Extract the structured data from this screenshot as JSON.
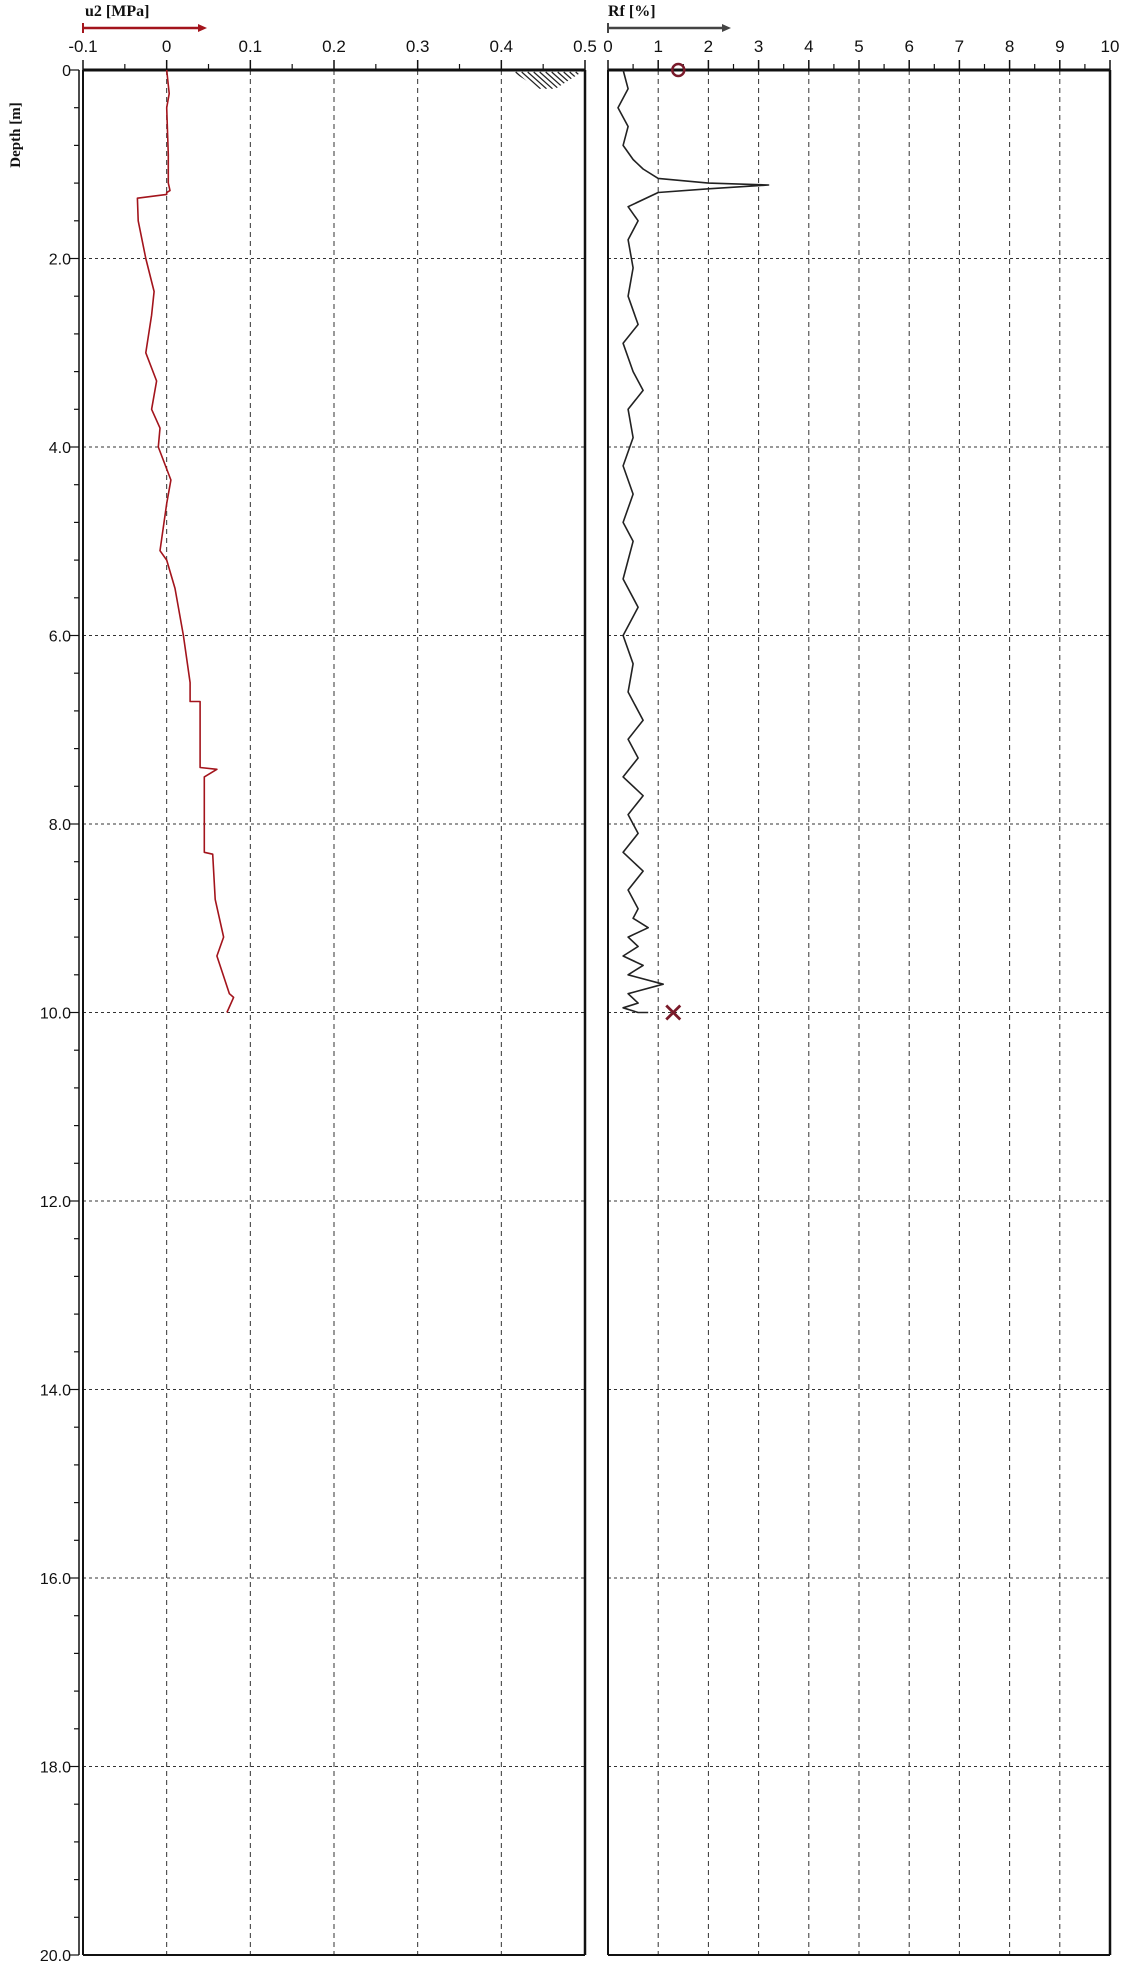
{
  "chart_data": {
    "ylabel": "Depth [m]",
    "depth_range": [
      0,
      20
    ],
    "depth_tick_labels": [
      "0",
      "2.0",
      "4.0",
      "6.0",
      "8.0",
      "10.0",
      "12.0",
      "14.0",
      "16.0",
      "18.0",
      "20.0"
    ],
    "depth_tick_values": [
      0,
      2,
      4,
      6,
      8,
      10,
      12,
      14,
      16,
      18,
      20
    ],
    "panels": [
      {
        "type": "line",
        "xlabel": "u2 [MPa]",
        "xlim": [
          -0.1,
          0.5
        ],
        "x_tick_labels": [
          "-0.1",
          "0",
          "0.1",
          "0.2",
          "0.3",
          "0.4",
          "0.5"
        ],
        "x_tick_values": [
          -0.1,
          0,
          0.1,
          0.2,
          0.3,
          0.4,
          0.5
        ],
        "grid": true,
        "line_color": "#a3141c",
        "marker_color": "#7a1a2a",
        "groundwater_hatch": {
          "x_from": 0.41,
          "x_to": 0.5,
          "depth_from": 0.0,
          "depth_to": 0.2
        },
        "series": {
          "x": [
            0.0,
            0.003,
            0.0,
            0.002,
            0.002,
            0.004,
            0.0,
            0.0,
            -0.035,
            -0.034,
            -0.025,
            -0.015,
            -0.018,
            -0.025,
            -0.012,
            -0.018,
            -0.008,
            -0.01,
            0.005,
            0.0,
            -0.008,
            0.0,
            0.0,
            0.01,
            0.02,
            0.028,
            0.028,
            0.04,
            0.04,
            0.06,
            0.045,
            0.045,
            0.055,
            0.058,
            0.068,
            0.06,
            0.075,
            0.08,
            0.072
          ],
          "depth": [
            0.0,
            0.25,
            0.4,
            0.9,
            1.2,
            1.28,
            1.3,
            1.32,
            1.36,
            1.6,
            2.0,
            2.35,
            2.6,
            3.0,
            3.3,
            3.6,
            3.8,
            4.0,
            4.35,
            4.6,
            5.1,
            5.2,
            5.2,
            5.5,
            6.0,
            6.5,
            6.7,
            6.7,
            7.4,
            7.42,
            7.5,
            8.3,
            8.32,
            8.8,
            9.2,
            9.4,
            9.8,
            9.84,
            10.0
          ]
        }
      },
      {
        "type": "line",
        "xlabel": "Rf [%]",
        "xlim": [
          0,
          10
        ],
        "x_tick_labels": [
          "0",
          "1",
          "2",
          "3",
          "4",
          "5",
          "6",
          "7",
          "8",
          "9",
          "10"
        ],
        "x_tick_values": [
          0,
          1,
          2,
          3,
          4,
          5,
          6,
          7,
          8,
          9,
          10
        ],
        "grid": true,
        "line_color": "#222222",
        "marker_color": "#7a1a2a",
        "markers": [
          {
            "symbol": "o",
            "x": 1.4,
            "depth": 0.0
          },
          {
            "symbol": "x",
            "x": 1.3,
            "depth": 10.0
          }
        ],
        "series": {
          "x": [
            0.3,
            0.4,
            0.2,
            0.4,
            0.3,
            0.5,
            0.7,
            1.0,
            2.0,
            3.2,
            2.0,
            1.0,
            0.4,
            0.6,
            0.4,
            0.5,
            0.4,
            0.6,
            0.3,
            0.5,
            0.7,
            0.4,
            0.5,
            0.3,
            0.5,
            0.3,
            0.5,
            0.3,
            0.6,
            0.3,
            0.5,
            0.4,
            0.7,
            0.4,
            0.6,
            0.3,
            0.7,
            0.4,
            0.6,
            0.3,
            0.7,
            0.4,
            0.6,
            0.5,
            0.8,
            0.4,
            0.6,
            0.3,
            0.7,
            0.4,
            1.1,
            0.4,
            0.6,
            0.3,
            0.6,
            0.8
          ],
          "depth": [
            0.0,
            0.2,
            0.4,
            0.6,
            0.8,
            0.95,
            1.05,
            1.15,
            1.2,
            1.22,
            1.26,
            1.3,
            1.45,
            1.6,
            1.8,
            2.1,
            2.4,
            2.7,
            2.9,
            3.2,
            3.4,
            3.6,
            3.9,
            4.2,
            4.5,
            4.8,
            5.0,
            5.4,
            5.7,
            6.0,
            6.3,
            6.6,
            6.9,
            7.1,
            7.3,
            7.5,
            7.7,
            7.9,
            8.1,
            8.3,
            8.5,
            8.7,
            8.9,
            9.0,
            9.1,
            9.2,
            9.3,
            9.4,
            9.5,
            9.6,
            9.7,
            9.8,
            9.9,
            9.95,
            10.0,
            10.0
          ]
        }
      }
    ]
  }
}
